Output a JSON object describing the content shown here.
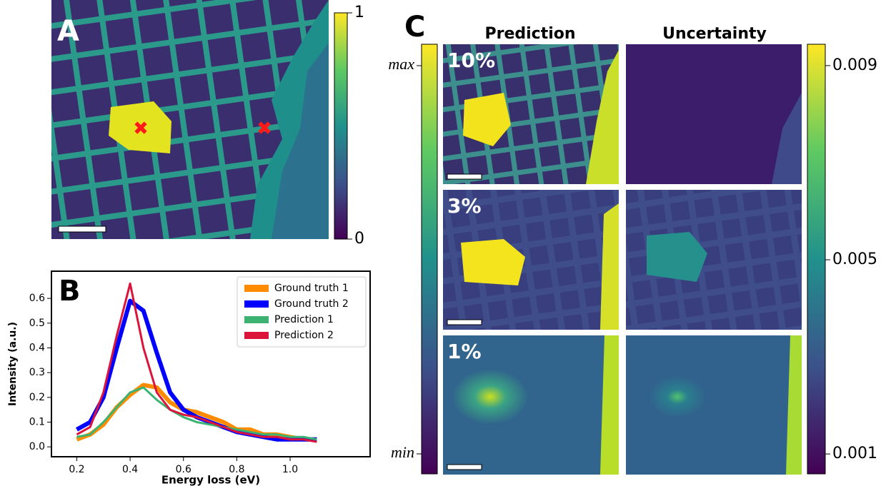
{
  "panel_a": {
    "label": "A",
    "colorbar": {
      "ylim": [
        0,
        1
      ],
      "yticks": [
        0,
        1
      ]
    }
  },
  "chart_data": {
    "type": "line",
    "label": "B",
    "x_label": "Energy loss (eV)",
    "y_label": "Intensity (a.u.)",
    "x": [
      0.2,
      0.25,
      0.3,
      0.35,
      0.4,
      0.45,
      0.5,
      0.55,
      0.6,
      0.65,
      0.7,
      0.75,
      0.8,
      0.85,
      0.9,
      0.95,
      1.0,
      1.05,
      1.1
    ],
    "series": [
      {
        "name": "Ground truth 1",
        "color": "#ff8c00",
        "width": 6,
        "values": [
          0.03,
          0.05,
          0.09,
          0.16,
          0.21,
          0.25,
          0.24,
          0.18,
          0.15,
          0.14,
          0.12,
          0.1,
          0.07,
          0.07,
          0.05,
          0.05,
          0.04,
          0.03,
          0.03
        ]
      },
      {
        "name": "Ground truth 2",
        "color": "#0000ff",
        "width": 6,
        "values": [
          0.07,
          0.1,
          0.2,
          0.4,
          0.59,
          0.55,
          0.38,
          0.22,
          0.15,
          0.12,
          0.1,
          0.08,
          0.06,
          0.05,
          0.04,
          0.03,
          0.03,
          0.03,
          0.03
        ]
      },
      {
        "name": "Prediction 1",
        "color": "#3cb371",
        "width": 3,
        "values": [
          0.04,
          0.05,
          0.1,
          0.16,
          0.22,
          0.24,
          0.19,
          0.15,
          0.12,
          0.1,
          0.09,
          0.08,
          0.07,
          0.06,
          0.05,
          0.05,
          0.04,
          0.04,
          0.03
        ]
      },
      {
        "name": "Prediction 2",
        "color": "#dc143c",
        "width": 3,
        "values": [
          0.05,
          0.08,
          0.22,
          0.45,
          0.66,
          0.4,
          0.22,
          0.15,
          0.13,
          0.12,
          0.1,
          0.08,
          0.06,
          0.05,
          0.04,
          0.04,
          0.03,
          0.03,
          0.02
        ]
      }
    ],
    "xlim": [
      0.105,
      1.3
    ],
    "ylim": [
      -0.04,
      0.71
    ],
    "xticks": [
      0.2,
      0.4,
      0.6,
      0.8,
      {
        "value": 1,
        "label": "1.0"
      }
    ],
    "yticks": [
      {
        "value": 0,
        "label": "0.0"
      },
      0.1,
      0.2,
      0.3,
      0.4,
      0.5,
      0.6
    ],
    "legend": "upper right"
  },
  "panel_c": {
    "label": "C",
    "columns": [
      "Prediction",
      "Uncertainty"
    ],
    "rows": [
      "10%",
      "3%",
      "1%"
    ],
    "left_colorbar": {
      "top": "max",
      "bottom": "min"
    },
    "right_colorbar": {
      "ylim": [
        0.00059,
        0.00944
      ],
      "yticks": [
        0.009,
        0.005,
        0.001
      ]
    }
  }
}
